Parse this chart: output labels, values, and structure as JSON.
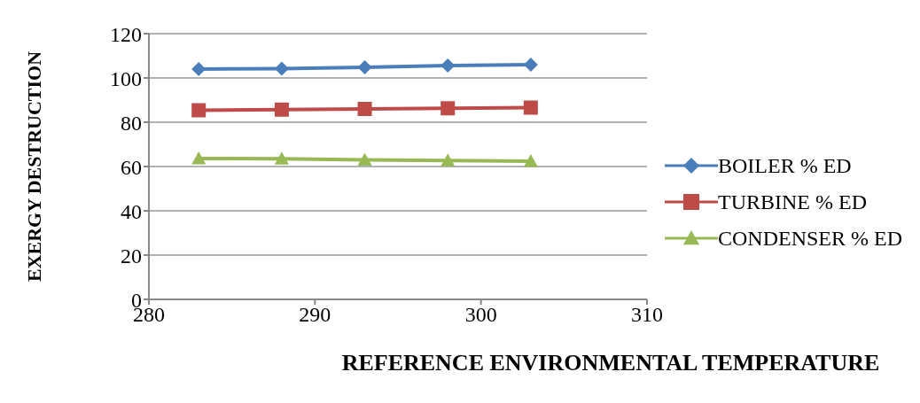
{
  "chart_data": {
    "type": "line",
    "xlabel": "REFERENCE ENVIRONMENTAL TEMPERATURE",
    "ylabel": "EXERGY DESTRUCTION",
    "x": [
      283,
      288,
      293,
      298,
      303
    ],
    "series": [
      {
        "name": "BOILER % ED",
        "color": "#4a7ebb",
        "marker": "diamond",
        "values": [
          104,
          104.2,
          104.8,
          105.6,
          106
        ]
      },
      {
        "name": "TURBINE % ED",
        "color": "#be4b48",
        "marker": "square",
        "values": [
          85.4,
          85.7,
          86,
          86.3,
          86.6
        ]
      },
      {
        "name": "CONDENSER % ED",
        "color": "#98b954",
        "marker": "triangle",
        "values": [
          63.6,
          63.5,
          63,
          62.7,
          62.4
        ]
      }
    ],
    "xlim": [
      280,
      310
    ],
    "xticks": [
      280,
      290,
      300,
      310
    ],
    "ylim": [
      0,
      120
    ],
    "yticks": [
      0,
      20,
      40,
      60,
      80,
      100,
      120
    ],
    "grid": "y",
    "legend": "right",
    "line_style": "solid"
  }
}
